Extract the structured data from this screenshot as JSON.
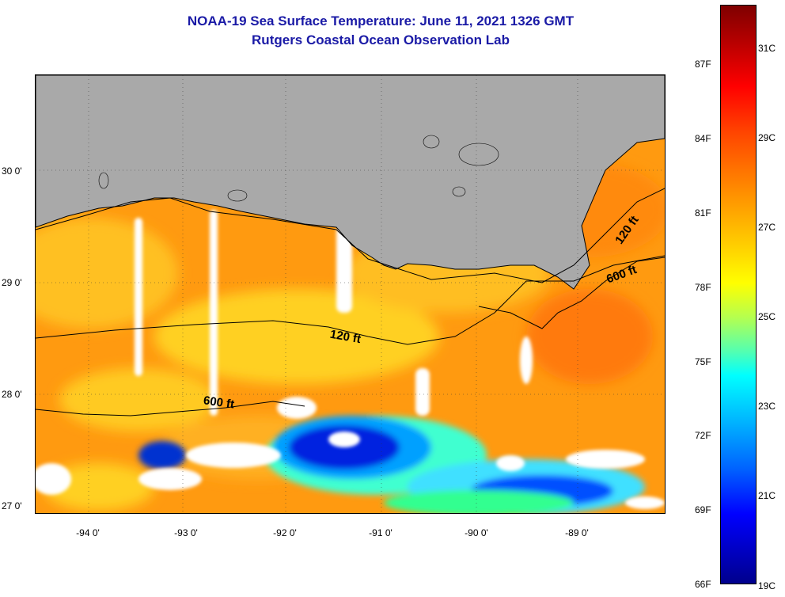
{
  "title": "NOAA-19 Sea Surface Temperature:  June 11, 2021 1326 GMT",
  "subtitle": "Rutgers Coastal Ocean Observation Lab",
  "lat_labels": [
    "30 0'",
    "29 0'",
    "28 0'",
    "27 0'"
  ],
  "lon_labels": [
    "-94 0'",
    "-93 0'",
    "-92 0'",
    "-91 0'",
    "-90 0'",
    "-89 0'"
  ],
  "contour_labels": {
    "upper_120": "120 ft",
    "upper_600": "600 ft",
    "lower_120": "120 ft",
    "lower_600": "600 ft"
  },
  "colorbar": {
    "fahrenheit": [
      "87F",
      "84F",
      "81F",
      "78F",
      "75F",
      "72F",
      "69F",
      "66F"
    ],
    "celsius": [
      "31C",
      "29C",
      "27C",
      "25C",
      "23C",
      "21C",
      "19C"
    ],
    "colors": [
      "#7f0000",
      "#ff0000",
      "#ff8c00",
      "#ffff00",
      "#00ffff",
      "#0000ff",
      "#00008c"
    ]
  },
  "legend_colors": {
    "land": "#a9a9a9",
    "cloud": "#ffffff",
    "title": "#1a1aa6"
  }
}
